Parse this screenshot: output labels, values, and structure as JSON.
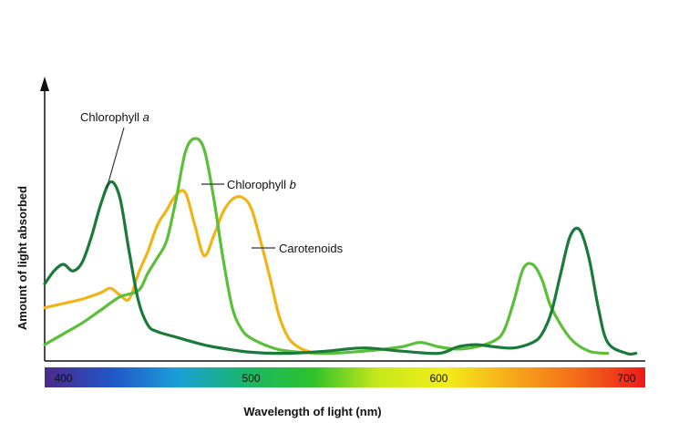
{
  "chart_data": {
    "type": "line",
    "title": "",
    "xlabel": "Wavelength of light (nm)",
    "ylabel": "Amount of light absorbed",
    "xlim": [
      390,
      710
    ],
    "ylim": [
      0,
      1
    ],
    "grid": false,
    "x_ticks": [
      "400",
      "500",
      "600",
      "700"
    ],
    "spectrum_colors": [
      "#4b2a8a",
      "#2255c8",
      "#1aa0d8",
      "#19b56a",
      "#2cc22c",
      "#c8e81a",
      "#f2ee1a",
      "#f7a81a",
      "#f26a1a",
      "#ee1a1a"
    ],
    "series": [
      {
        "name": "Chlorophyll a",
        "label_prefix": "Chlorophyll ",
        "label_suffix": "a",
        "color": "#1a7a3a",
        "x": [
          390,
          395,
          400,
          405,
          410,
          415,
          420,
          425,
          430,
          435,
          440,
          445,
          450,
          460,
          470,
          480,
          500,
          520,
          540,
          560,
          580,
          600,
          610,
          620,
          630,
          640,
          650,
          655,
          660,
          665,
          670,
          675,
          680,
          685,
          690,
          700,
          705
        ],
        "y": [
          0.33,
          0.39,
          0.42,
          0.39,
          0.43,
          0.55,
          0.7,
          0.8,
          0.73,
          0.48,
          0.25,
          0.14,
          0.11,
          0.085,
          0.06,
          0.04,
          0.015,
          0.01,
          0.02,
          0.035,
          0.02,
          0.01,
          0.04,
          0.05,
          0.04,
          0.035,
          0.06,
          0.1,
          0.2,
          0.38,
          0.55,
          0.58,
          0.45,
          0.22,
          0.06,
          0.01,
          0.01
        ]
      },
      {
        "name": "Chlorophyll b",
        "label_prefix": "Chlorophyll ",
        "label_suffix": "b",
        "color": "#5bbf3a",
        "x": [
          390,
          400,
          410,
          420,
          430,
          440,
          445,
          450,
          455,
          460,
          465,
          470,
          475,
          480,
          485,
          490,
          495,
          500,
          510,
          520,
          540,
          560,
          580,
          590,
          600,
          610,
          620,
          630,
          635,
          640,
          645,
          650,
          655,
          660,
          670,
          680,
          690
        ],
        "y": [
          0.05,
          0.1,
          0.15,
          0.21,
          0.27,
          0.3,
          0.38,
          0.45,
          0.53,
          0.72,
          0.94,
          1.0,
          0.95,
          0.73,
          0.45,
          0.22,
          0.12,
          0.08,
          0.04,
          0.02,
          0.01,
          0.02,
          0.04,
          0.06,
          0.04,
          0.03,
          0.04,
          0.07,
          0.12,
          0.25,
          0.4,
          0.42,
          0.35,
          0.22,
          0.08,
          0.02,
          0.01
        ]
      },
      {
        "name": "Carotenoids",
        "label_prefix": "Carotenoids",
        "label_suffix": "",
        "color": "#f0b419",
        "x": [
          390,
          400,
          410,
          420,
          425,
          430,
          435,
          440,
          445,
          450,
          455,
          460,
          465,
          470,
          475,
          480,
          485,
          490,
          495,
          500,
          505,
          510,
          515,
          520,
          525,
          530,
          535,
          540
        ],
        "y": [
          0.22,
          0.24,
          0.26,
          0.29,
          0.31,
          0.28,
          0.26,
          0.38,
          0.48,
          0.6,
          0.67,
          0.74,
          0.75,
          0.6,
          0.46,
          0.55,
          0.66,
          0.72,
          0.73,
          0.68,
          0.53,
          0.36,
          0.18,
          0.08,
          0.04,
          0.02,
          0.01,
          0.01
        ]
      }
    ]
  }
}
